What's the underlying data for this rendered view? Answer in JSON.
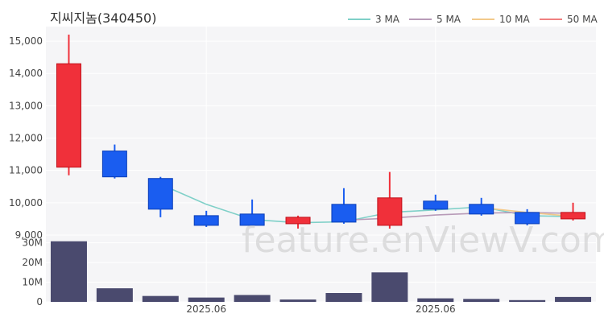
{
  "chart_data": {
    "type": "candlestick",
    "title": "지씨지놈(340450)",
    "watermark": "feature.enViewV.com",
    "price_axis": {
      "ticks": [
        9000,
        10000,
        11000,
        12000,
        13000,
        14000,
        15000
      ],
      "tick_labels": [
        "9,000",
        "10,000",
        "11,000",
        "12,000",
        "13,000",
        "14,000",
        "15,000"
      ],
      "range": [
        8850,
        15450
      ]
    },
    "volume_axis": {
      "ticks": [
        0,
        10000000,
        20000000,
        30000000
      ],
      "tick_labels": [
        "0",
        "10M",
        "20M",
        "30M"
      ],
      "range": [
        0,
        31500000
      ]
    },
    "x_tick_labels": [
      {
        "index": 3,
        "label": "2025.06"
      },
      {
        "index": 8,
        "label": "2025.06"
      }
    ],
    "candles": [
      {
        "open": 11100,
        "high": 15200,
        "low": 10850,
        "close": 14300,
        "volume": 30800000
      },
      {
        "open": 11600,
        "high": 11800,
        "low": 10750,
        "close": 10800,
        "volume": 6900000
      },
      {
        "open": 10750,
        "high": 10800,
        "low": 9550,
        "close": 9800,
        "volume": 3000000
      },
      {
        "open": 9600,
        "high": 9750,
        "low": 9250,
        "close": 9300,
        "volume": 2200000
      },
      {
        "open": 9650,
        "high": 10100,
        "low": 9300,
        "close": 9300,
        "volume": 3500000
      },
      {
        "open": 9350,
        "high": 9600,
        "low": 9200,
        "close": 9550,
        "volume": 1200000
      },
      {
        "open": 9950,
        "high": 10450,
        "low": 9350,
        "close": 9400,
        "volume": 4500000
      },
      {
        "open": 9300,
        "high": 10950,
        "low": 9200,
        "close": 10150,
        "volume": 15000000
      },
      {
        "open": 10050,
        "high": 10250,
        "low": 9750,
        "close": 9800,
        "volume": 1800000
      },
      {
        "open": 9950,
        "high": 10150,
        "low": 9600,
        "close": 9650,
        "volume": 1500000
      },
      {
        "open": 9700,
        "high": 9800,
        "low": 9300,
        "close": 9350,
        "volume": 900000
      },
      {
        "open": 9500,
        "high": 10000,
        "low": 9450,
        "close": 9700,
        "volume": 2500000
      }
    ],
    "moving_averages": [
      {
        "name": "3 MA",
        "color": "#7fd0c8",
        "values": [
          null,
          null,
          10570,
          9950,
          9480,
          9380,
          9410,
          9700,
          9780,
          9870,
          9600,
          9570
        ]
      },
      {
        "name": "5 MA",
        "color": "#b89bb8",
        "values": [
          null,
          null,
          null,
          null,
          10080,
          null,
          9460,
          9520,
          9620,
          9680,
          9700,
          9670
        ]
      },
      {
        "name": "10 MA",
        "color": "#f2c98a",
        "values": [
          null,
          null,
          null,
          null,
          null,
          null,
          null,
          null,
          null,
          9850,
          9700,
          9580
        ]
      },
      {
        "name": "50 MA",
        "color": "#f08080",
        "values": [
          null,
          null,
          null,
          null,
          null,
          null,
          null,
          null,
          null,
          null,
          null,
          null
        ]
      }
    ],
    "colors": {
      "up": "#f0303a",
      "down": "#1a5df0",
      "volume": "#4a4a6e",
      "plot_bg": "#f5f5f7",
      "grid": "#ffffff"
    },
    "legend_position": "top-right"
  }
}
